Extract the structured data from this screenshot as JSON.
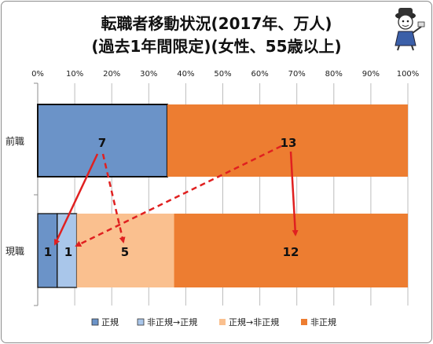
{
  "title_line1": "転職者移動状況(2017年、万人)",
  "title_line2": "(過去1年間限定)(女性、55歳以上)",
  "colors": {
    "regular": "#6b93c8",
    "nonreg_to_reg": "#a9c6ea",
    "reg_to_nonreg": "#fac08f",
    "nonregular": "#ed7d31",
    "arrow": "#e02020"
  },
  "chart_data": {
    "type": "bar",
    "orientation": "horizontal",
    "stacked": "percent",
    "categories": [
      "前職",
      "現職"
    ],
    "x_ticks": [
      "0%",
      "10%",
      "20%",
      "30%",
      "40%",
      "50%",
      "60%",
      "70%",
      "80%",
      "90%",
      "100%"
    ],
    "xlim": [
      0,
      100
    ],
    "grid": true,
    "legend_position": "bottom",
    "series": [
      {
        "name": "正規",
        "values": [
          7,
          1
        ],
        "labels": [
          "7",
          "1"
        ]
      },
      {
        "name": "非正規→正規",
        "values": [
          0,
          1
        ],
        "labels": [
          "",
          "1"
        ]
      },
      {
        "name": "正規→非正規",
        "values": [
          0,
          5
        ],
        "labels": [
          "",
          "5"
        ]
      },
      {
        "name": "非正規",
        "values": [
          13,
          12
        ],
        "labels": [
          "13",
          "12"
        ]
      }
    ],
    "prev_split_pct": 35,
    "annotations": [
      {
        "from": "前職.正規",
        "to": "現職.正規",
        "style": "solid"
      },
      {
        "from": "前職.正規",
        "to": "現職.正規→非正規",
        "style": "dashed"
      },
      {
        "from": "前職.非正規",
        "to": "現職.非正規→正規",
        "style": "dashed"
      },
      {
        "from": "前職.非正規",
        "to": "現職.非正規",
        "style": "solid"
      }
    ]
  }
}
